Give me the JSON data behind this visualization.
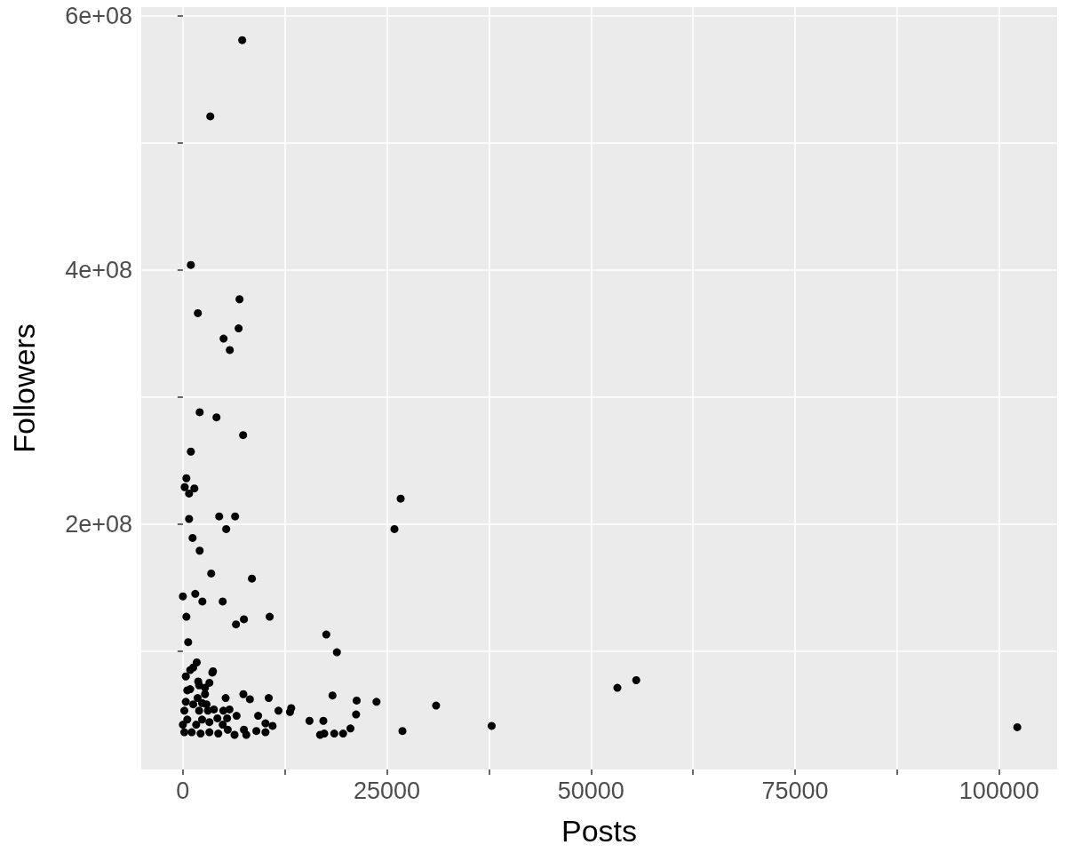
{
  "chart_data": {
    "type": "scatter",
    "xlabel": "Posts",
    "ylabel": "Followers",
    "color": "#000000",
    "marker": "circle",
    "grid": true,
    "xlim": [
      -5100,
      107100
    ],
    "ylim": [
      6700000,
      607000000
    ],
    "xticks": [
      0,
      {
        "value": 12500,
        "label": null
      },
      25000,
      {
        "value": 37500,
        "label": null
      },
      50000,
      {
        "value": 62500,
        "label": null
      },
      75000,
      {
        "value": 87500,
        "label": null
      },
      100000
    ],
    "yticks": [
      {
        "value": 100000000,
        "label": null
      },
      {
        "value": 200000000,
        "label": "2e+08"
      },
      {
        "value": 300000000,
        "label": null
      },
      {
        "value": 400000000,
        "label": "4e+08"
      },
      {
        "value": 500000000,
        "label": null
      },
      {
        "value": 600000000,
        "label": "6e+08"
      }
    ],
    "x": [
      7270,
      3360,
      980,
      6940,
      1840,
      6830,
      4990,
      5750,
      2060,
      4120,
      7380,
      980,
      430,
      220,
      1410,
      760,
      26680,
      4450,
      6400,
      760,
      25920,
      5310,
      1190,
      2060,
      3470,
      8460,
      0,
      1520,
      4880,
      2390,
      430,
      7480,
      10630,
      6510,
      650,
      17570,
      18870,
      1700,
      3690,
      3610,
      900,
      1270,
      360,
      1880,
      3250,
      540,
      2710,
      7410,
      8210,
      10520,
      5240,
      18330,
      21290,
      23720,
      31020,
      360,
      3800,
      4960,
      5710,
      6580,
      9220,
      11710,
      13270,
      13120,
      15510,
      17210,
      21220,
      5420,
      4230,
      4880,
      5500,
      10120,
      10990,
      10120,
      9000,
      7480,
      7770,
      6330,
      16810,
      17320,
      18550,
      19630,
      20530,
      26900,
      4340,
      3250,
      2170,
      180,
      540,
      0,
      180,
      1080,
      1630,
      2350,
      3070,
      1990,
      1270,
      2350,
      2900,
      1810,
      900,
      1990,
      2710,
      3250,
      53230,
      55540,
      37830,
      102220
    ],
    "values": [
      581000000,
      521000000,
      404000000,
      377000000,
      366000000,
      354000000,
      346000000,
      337000000,
      288000000,
      284000000,
      270000000,
      257000000,
      236000000,
      229000000,
      228000000,
      224000000,
      220000000,
      206000000,
      206000000,
      204000000,
      196000000,
      196000000,
      189000000,
      179000000,
      161000000,
      157000000,
      143000000,
      145000000,
      139000000,
      139000000,
      127000000,
      125000000,
      127000000,
      121000000,
      107000000,
      113000000,
      99000000,
      91000000,
      84000000,
      83000000,
      85000000,
      87000000,
      80000000,
      76000000,
      75000000,
      69000000,
      66000000,
      66000000,
      62000000,
      63000000,
      63000000,
      65000000,
      61000000,
      60000000,
      57000000,
      60000000,
      54000000,
      53000000,
      54000000,
      49000000,
      49000000,
      53000000,
      55000000,
      52000000,
      45000000,
      45000000,
      50000000,
      47000000,
      47000000,
      42000000,
      38000000,
      43000000,
      41000000,
      36000000,
      37000000,
      38000000,
      34000000,
      34000000,
      34000000,
      35000000,
      35000000,
      35000000,
      39000000,
      37000000,
      35000000,
      36000000,
      35000000,
      53000000,
      46000000,
      42000000,
      36000000,
      36000000,
      42000000,
      46000000,
      53000000,
      53000000,
      58000000,
      59000000,
      58000000,
      63000000,
      70000000,
      73000000,
      71000000,
      44000000,
      71000000,
      77000000,
      41000000,
      40000000
    ]
  }
}
